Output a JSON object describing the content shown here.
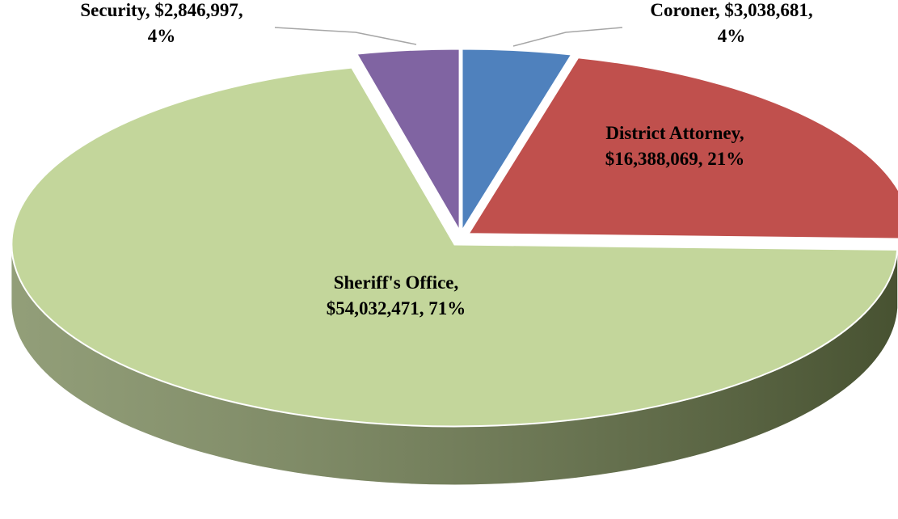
{
  "chart_data": {
    "type": "pie",
    "categories": [
      "Coroner",
      "District Attorney",
      "Sheriff's Office",
      "Security"
    ],
    "values": [
      3038681,
      16388069,
      54032471,
      2846997
    ],
    "value_labels": [
      "$3,038,681",
      "$16,388,069",
      "$54,032,471",
      "$2,846,997"
    ],
    "percents": [
      4,
      21,
      71,
      4
    ],
    "percent_labels": [
      "4%",
      "21%",
      "71%",
      "4%"
    ],
    "colors": [
      "#4f81bd",
      "#c0504d",
      "#c3d69b",
      "#8064a2"
    ],
    "side_colors": [
      "#2f5784",
      "#5a1f1d",
      "#6e7e4c",
      "#2e2540"
    ]
  }
}
